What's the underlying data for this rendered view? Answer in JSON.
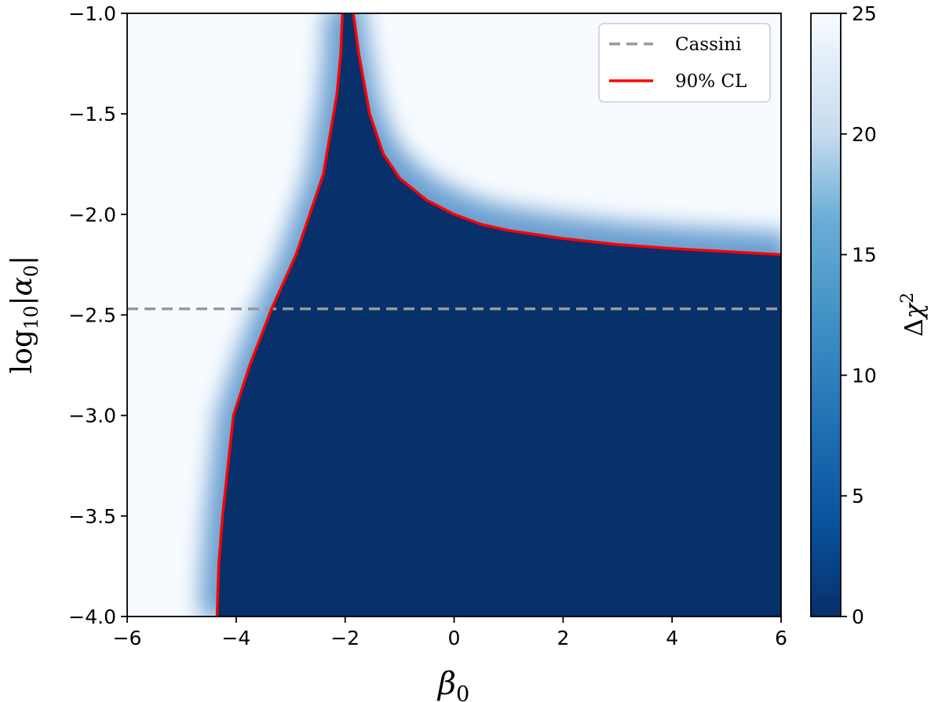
{
  "chart_data": {
    "type": "heatmap",
    "xlabel": "β0",
    "ylabel": "log10|α0|",
    "colorbar_label": "Δχ²",
    "xlim": [
      -6,
      6
    ],
    "ylim": [
      -4.0,
      -1.0
    ],
    "clim": [
      0,
      25
    ],
    "colormap": "Blues_r",
    "xticks": [
      -6,
      -4,
      -2,
      0,
      2,
      4,
      6
    ],
    "xtick_labels": [
      "−6",
      "−4",
      "−2",
      "0",
      "2",
      "4",
      "6"
    ],
    "yticks": [
      -4.0,
      -3.5,
      -3.0,
      -2.5,
      -2.0,
      -1.5,
      -1.0
    ],
    "ytick_labels": [
      "−4.0",
      "−3.5",
      "−3.0",
      "−2.5",
      "−2.0",
      "−1.5",
      "−1.0"
    ],
    "cbar_ticks": [
      0,
      5,
      10,
      15,
      20,
      25
    ],
    "cbar_tick_labels": [
      "0",
      "5",
      "10",
      "15",
      "20",
      "25"
    ],
    "legend_position": "top-right",
    "series": [
      {
        "name": "Cassini",
        "style": "dashed",
        "color": "#999999",
        "type": "hline",
        "y": -2.47
      },
      {
        "name": "90% CL",
        "style": "solid",
        "color": "#ff0000",
        "type": "contour",
        "left_branch": [
          [
            -4.35,
            -4.0
          ],
          [
            -4.32,
            -3.75
          ],
          [
            -4.25,
            -3.5
          ],
          [
            -4.05,
            -3.0
          ],
          [
            -3.75,
            -2.75
          ],
          [
            -3.35,
            -2.47
          ],
          [
            -2.9,
            -2.2
          ],
          [
            -2.4,
            -1.8
          ],
          [
            -2.15,
            -1.4
          ],
          [
            -2.08,
            -1.2
          ],
          [
            -2.05,
            -1.0
          ]
        ],
        "right_branch": [
          [
            -1.85,
            -1.0
          ],
          [
            -1.75,
            -1.2
          ],
          [
            -1.55,
            -1.5
          ],
          [
            -1.3,
            -1.7
          ],
          [
            -1.0,
            -1.82
          ],
          [
            -0.5,
            -1.93
          ],
          [
            0.0,
            -2.0
          ],
          [
            0.5,
            -2.05
          ],
          [
            1.0,
            -2.08
          ],
          [
            2.0,
            -2.12
          ],
          [
            3.0,
            -2.15
          ],
          [
            4.0,
            -2.17
          ],
          [
            5.0,
            -2.185
          ],
          [
            6.0,
            -2.2
          ]
        ]
      }
    ]
  }
}
